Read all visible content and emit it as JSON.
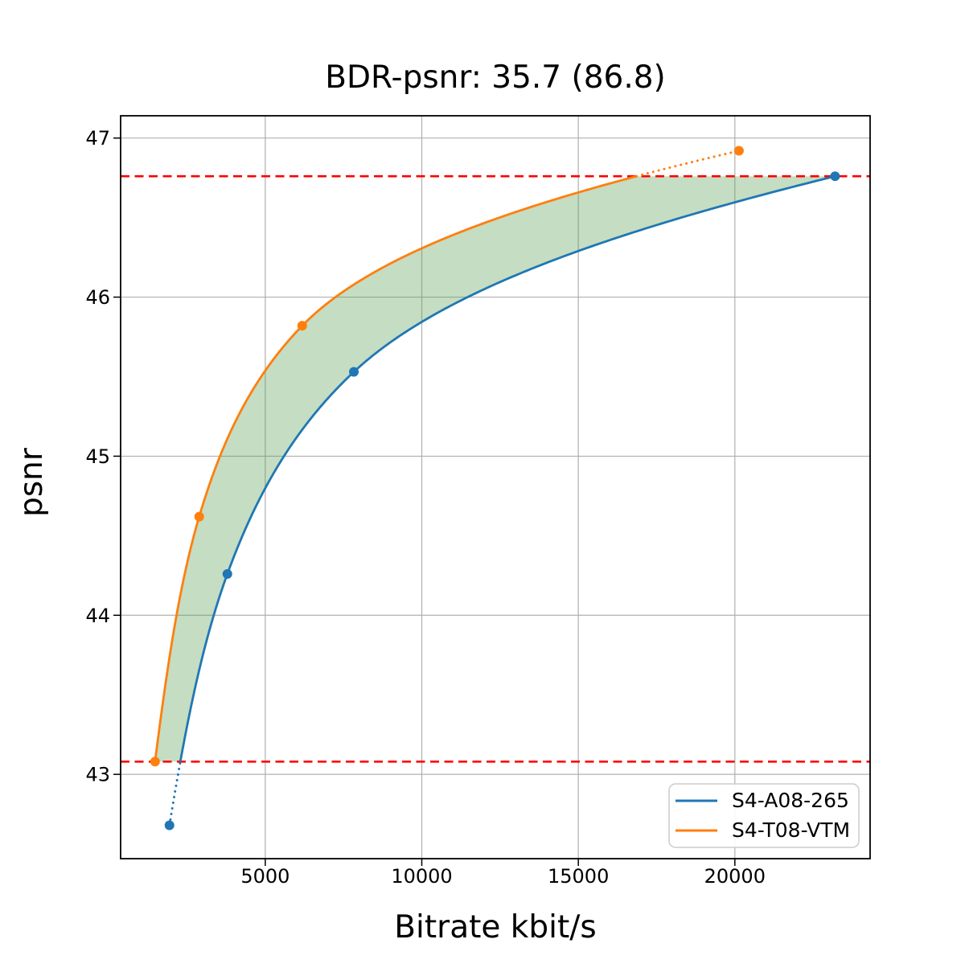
{
  "figure": {
    "background": "#ffffff"
  },
  "chart_data": {
    "type": "line",
    "title": "BDR-psnr: 35.7 (86.8)",
    "xlabel": "Bitrate kbit/s",
    "ylabel": "psnr",
    "xlim": [
      380,
      24320
    ],
    "ylim": [
      42.47,
      47.14
    ],
    "x_ticks": [
      5000,
      10000,
      15000,
      20000
    ],
    "x_tick_labels": [
      "5000",
      "10000",
      "15000",
      "20000"
    ],
    "y_ticks": [
      43,
      44,
      45,
      46,
      47
    ],
    "y_tick_labels": [
      "43",
      "44",
      "45",
      "46",
      "47"
    ],
    "grid": true,
    "grid_color": "#b0b0b0",
    "spine_color": "#000000",
    "legend": {
      "position": "lower right",
      "entries": [
        "S4-A08-265",
        "S4-T08-VTM"
      ]
    },
    "series": [
      {
        "name": "S4-A08-265",
        "color": "#1f77b4",
        "marker": "circle",
        "points": [
          [
            1940,
            42.68
          ],
          [
            3790,
            44.26
          ],
          [
            7830,
            45.53
          ],
          [
            23200,
            46.76
          ]
        ]
      },
      {
        "name": "S4-T08-VTM",
        "color": "#ff7f0e",
        "marker": "circle",
        "points": [
          [
            1480,
            43.08
          ],
          [
            2890,
            44.62
          ],
          [
            6180,
            45.82
          ],
          [
            20130,
            46.92
          ]
        ]
      }
    ],
    "reference_lines": [
      {
        "y": 46.76,
        "color": "#ff0000",
        "style": "dashed"
      },
      {
        "y": 43.08,
        "color": "#ff0000",
        "style": "dashed"
      }
    ],
    "shaded_region": {
      "between": [
        "S4-T08-VTM",
        "S4-A08-265"
      ],
      "psnr_range": [
        43.08,
        46.76
      ],
      "color": "#5a9e52",
      "opacity": 0.35
    }
  }
}
